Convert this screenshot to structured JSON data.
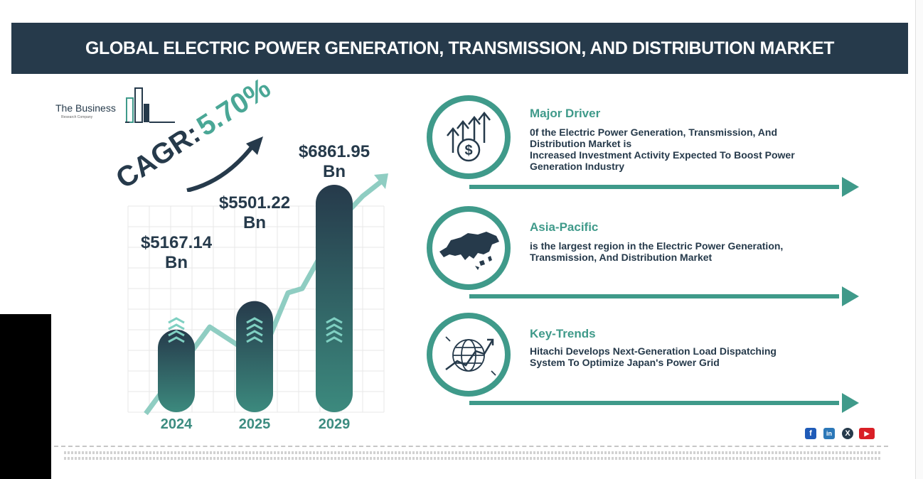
{
  "header": {
    "title": "GLOBAL ELECTRIC POWER GENERATION, TRANSMISSION, AND DISTRIBUTION MARKET"
  },
  "logo": {
    "name": "The Business",
    "sub": "Research Company"
  },
  "cagr": {
    "label": "CAGR:",
    "value": "5.70%"
  },
  "chart_data": {
    "type": "bar",
    "categories": [
      "2024",
      "2025",
      "2029"
    ],
    "values": [
      5167.14,
      5501.22,
      6861.95
    ],
    "value_labels": [
      "$5167.14 Bn",
      "$5501.22 Bn",
      "$6861.95 Bn"
    ],
    "title": "",
    "xlabel": "",
    "ylabel": "",
    "grid": true,
    "legend": "none"
  },
  "panels": [
    {
      "icon": "growth-dollar-icon",
      "title": "Major Driver",
      "lines": [
        "0f the Electric Power Generation, Transmission, And",
        "Distribution Market is",
        "Increased Investment Activity Expected To Boost Power",
        "Generation Industry"
      ]
    },
    {
      "icon": "asia-map-icon",
      "title": "Asia-Pacific",
      "lines": [
        "is the largest region in the Electric Power Generation,",
        "Transmission, And Distribution Market"
      ]
    },
    {
      "icon": "globe-trend-icon",
      "title": "Key-Trends",
      "lines": [
        "Hitachi Develops Next-Generation Load Dispatching",
        "System To Optimize Japan's Power Grid"
      ]
    }
  ],
  "social": [
    "f",
    "in",
    "X",
    "▶"
  ],
  "colors": {
    "navy": "#263a4b",
    "teal": "#3f9a8a",
    "light_teal": "#8fcdc2"
  }
}
